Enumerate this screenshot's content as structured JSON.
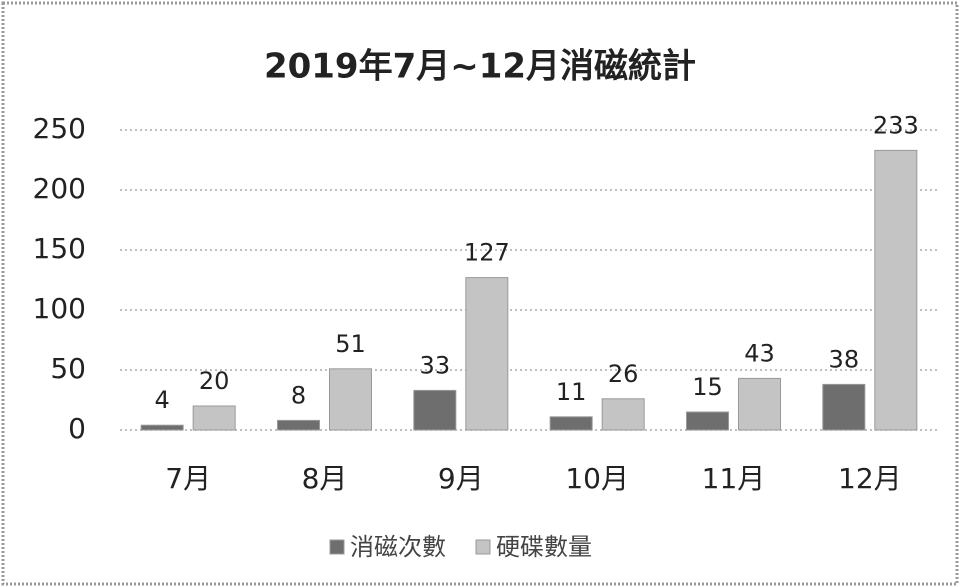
{
  "chart_data": {
    "type": "bar",
    "title": "2019年7月~12月消磁統計",
    "categories": [
      "7月",
      "8月",
      "9月",
      "10月",
      "11月",
      "12月"
    ],
    "series": [
      {
        "name": "消磁次數",
        "color": "#6e6e6e",
        "values": [
          4,
          8,
          33,
          11,
          15,
          38
        ]
      },
      {
        "name": "硬碟數量",
        "color": "#c4c4c4",
        "values": [
          20,
          51,
          127,
          26,
          43,
          233
        ]
      }
    ],
    "ylim": [
      0,
      250
    ],
    "yticks": [
      0,
      50,
      100,
      150,
      200,
      250
    ],
    "grid": true
  }
}
